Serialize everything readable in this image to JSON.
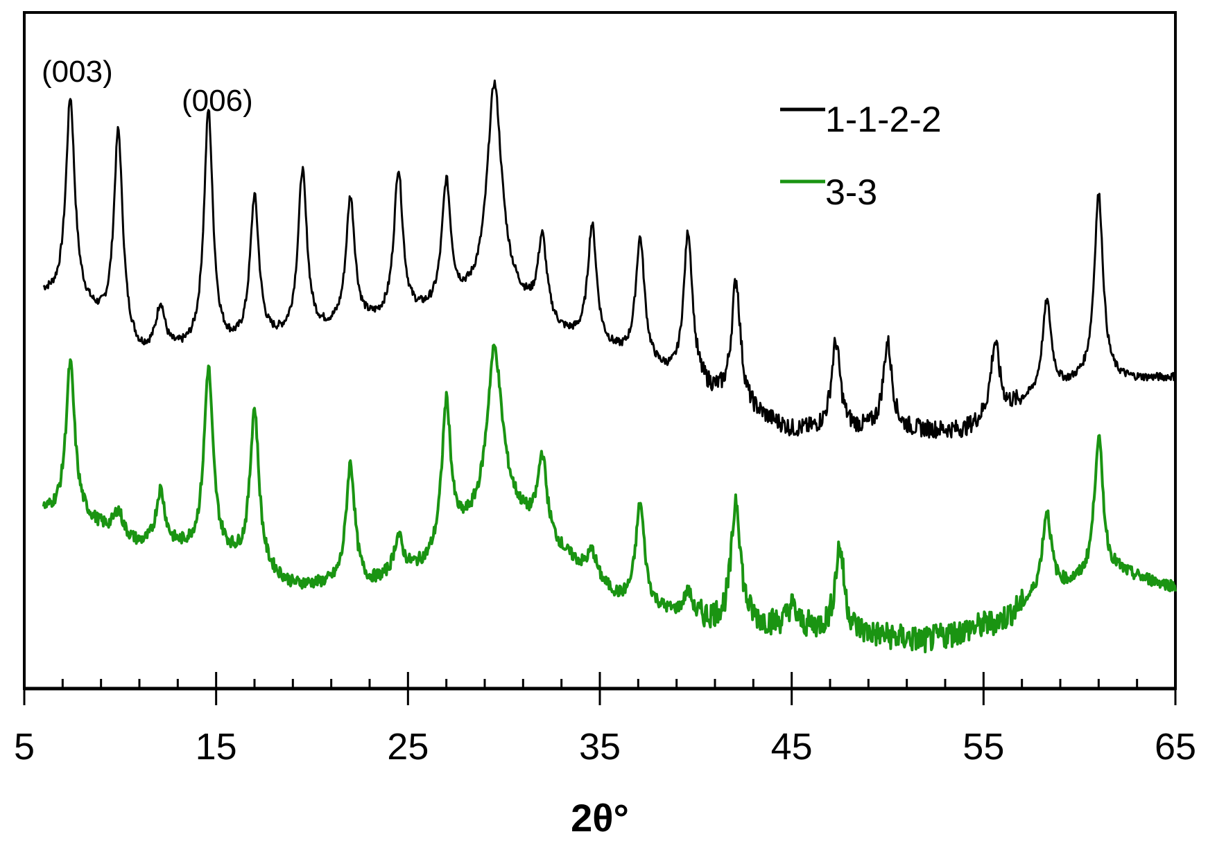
{
  "chart_data": {
    "type": "line",
    "title": "",
    "xlabel": "2θ°",
    "ylabel": "",
    "xlim": [
      5,
      65
    ],
    "x_ticks": [
      5,
      15,
      25,
      35,
      45,
      55,
      65
    ],
    "x_tick_labels": [
      "5",
      "15",
      "25",
      "35",
      "45",
      "55",
      "65"
    ],
    "minor_tick_step": 2,
    "y_axis_shown": false,
    "grid": false,
    "legend_position": "top-right",
    "annotations": [
      {
        "text": "(003)",
        "x": 7.4
      },
      {
        "text": "(006)",
        "x": 14.7
      }
    ],
    "series": [
      {
        "name": "1-1-2-2",
        "color": "#000000",
        "baseline": [
          [
            6.0,
            0.58
          ],
          [
            8.0,
            0.56
          ],
          [
            11.0,
            0.49
          ],
          [
            16.0,
            0.5
          ],
          [
            20.0,
            0.52
          ],
          [
            26.0,
            0.55
          ],
          [
            30.0,
            0.58
          ],
          [
            33.0,
            0.52
          ],
          [
            36.0,
            0.49
          ],
          [
            41.0,
            0.43
          ],
          [
            45.0,
            0.38
          ],
          [
            50.0,
            0.38
          ],
          [
            54.0,
            0.38
          ],
          [
            57.0,
            0.42
          ],
          [
            60.0,
            0.45
          ],
          [
            65.0,
            0.46
          ]
        ],
        "peaks": [
          {
            "x": 7.4,
            "y": 0.87
          },
          {
            "x": 9.9,
            "y": 0.82
          },
          {
            "x": 12.1,
            "y": 0.56
          },
          {
            "x": 14.6,
            "y": 0.85
          },
          {
            "x": 17.0,
            "y": 0.72
          },
          {
            "x": 19.5,
            "y": 0.76
          },
          {
            "x": 22.0,
            "y": 0.72
          },
          {
            "x": 24.5,
            "y": 0.76
          },
          {
            "x": 27.0,
            "y": 0.74
          },
          {
            "x": 29.5,
            "y": 0.89
          },
          {
            "x": 32.0,
            "y": 0.66
          },
          {
            "x": 34.6,
            "y": 0.68
          },
          {
            "x": 37.1,
            "y": 0.66
          },
          {
            "x": 39.6,
            "y": 0.67
          },
          {
            "x": 42.1,
            "y": 0.6
          },
          {
            "x": 47.3,
            "y": 0.51
          },
          {
            "x": 50.0,
            "y": 0.51
          },
          {
            "x": 55.6,
            "y": 0.51
          },
          {
            "x": 58.3,
            "y": 0.57
          },
          {
            "x": 61.0,
            "y": 0.73
          }
        ]
      },
      {
        "name": "3-3",
        "color": "#1a9412",
        "baseline": [
          [
            6.0,
            0.26
          ],
          [
            8.0,
            0.25
          ],
          [
            11.0,
            0.21
          ],
          [
            15.0,
            0.2
          ],
          [
            19.0,
            0.15
          ],
          [
            23.0,
            0.15
          ],
          [
            26.0,
            0.18
          ],
          [
            28.0,
            0.23
          ],
          [
            30.0,
            0.27
          ],
          [
            33.0,
            0.2
          ],
          [
            36.0,
            0.13
          ],
          [
            40.0,
            0.1
          ],
          [
            45.0,
            0.09
          ],
          [
            52.0,
            0.07
          ],
          [
            56.0,
            0.1
          ],
          [
            58.0,
            0.14
          ],
          [
            62.0,
            0.17
          ],
          [
            65.0,
            0.15
          ]
        ],
        "peaks": [
          {
            "x": 7.4,
            "y": 0.48
          },
          {
            "x": 9.9,
            "y": 0.26
          },
          {
            "x": 12.1,
            "y": 0.29
          },
          {
            "x": 14.6,
            "y": 0.47
          },
          {
            "x": 17.0,
            "y": 0.41
          },
          {
            "x": 22.0,
            "y": 0.33
          },
          {
            "x": 24.5,
            "y": 0.22
          },
          {
            "x": 27.0,
            "y": 0.42
          },
          {
            "x": 29.5,
            "y": 0.5
          },
          {
            "x": 32.0,
            "y": 0.34
          },
          {
            "x": 34.6,
            "y": 0.2
          },
          {
            "x": 37.1,
            "y": 0.27
          },
          {
            "x": 39.6,
            "y": 0.14
          },
          {
            "x": 42.1,
            "y": 0.28
          },
          {
            "x": 45.0,
            "y": 0.12
          },
          {
            "x": 47.5,
            "y": 0.21
          },
          {
            "x": 58.3,
            "y": 0.26
          },
          {
            "x": 61.0,
            "y": 0.37
          }
        ]
      }
    ]
  }
}
